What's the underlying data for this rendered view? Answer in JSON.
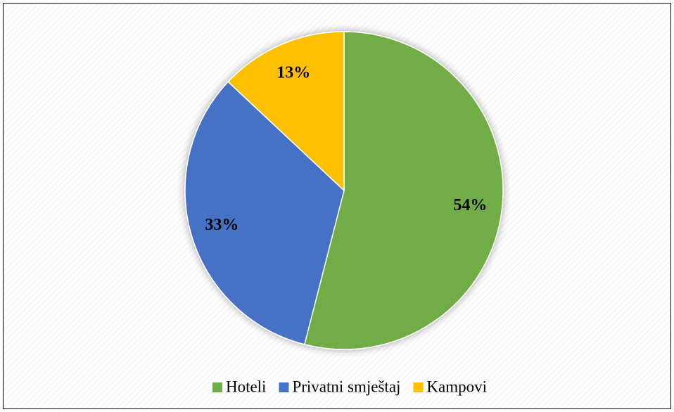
{
  "chart_data": {
    "type": "pie",
    "categories": [
      "Hoteli",
      "Privatni smještaj",
      "Kampovi"
    ],
    "values": [
      54,
      33,
      13
    ],
    "value_labels": [
      "54%",
      "33%",
      "13%"
    ],
    "colors": [
      "#70ad47",
      "#4472c4",
      "#ffc000"
    ],
    "legend": "bottom"
  }
}
